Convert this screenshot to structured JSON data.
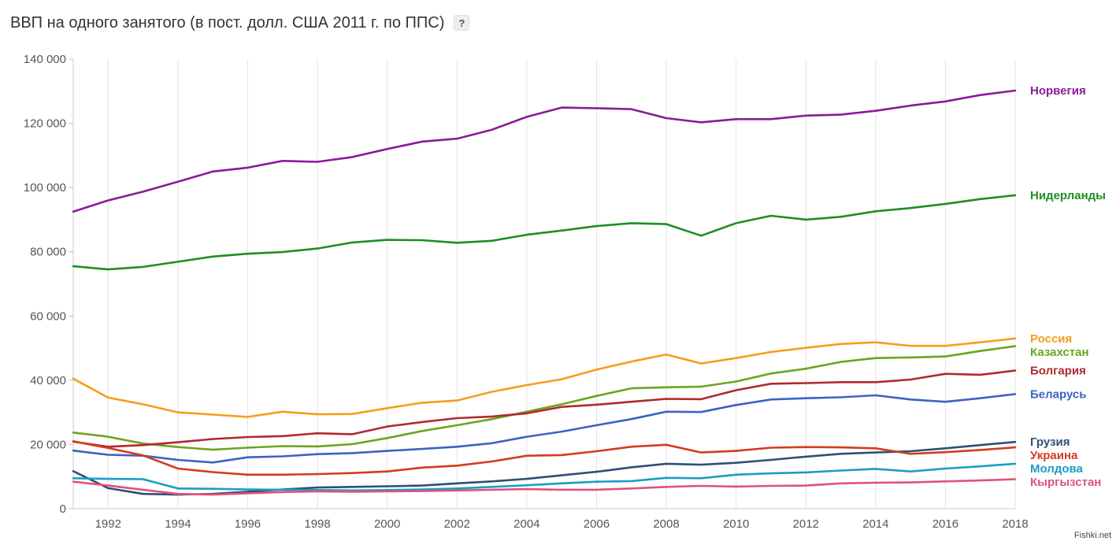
{
  "header": {
    "title": "ВВП на одного занятого (в пост. долл. США 2011 г. по ППС)",
    "help_label": "?"
  },
  "watermark": "Fishki.net",
  "chart_data": {
    "type": "line",
    "title": "ВВП на одного занятого (в пост. долл. США 2011 г. по ППС)",
    "xlabel": "",
    "ylabel": "",
    "x": [
      1991,
      1992,
      1993,
      1994,
      1995,
      1996,
      1997,
      1998,
      1999,
      2000,
      2001,
      2002,
      2003,
      2004,
      2005,
      2006,
      2007,
      2008,
      2009,
      2010,
      2011,
      2012,
      2013,
      2014,
      2015,
      2016,
      2017,
      2018
    ],
    "xlim": [
      1991,
      2018
    ],
    "ylim": [
      0,
      140000
    ],
    "xticks": [
      1992,
      1994,
      1996,
      1998,
      2000,
      2002,
      2004,
      2006,
      2008,
      2010,
      2012,
      2014,
      2016,
      2018
    ],
    "xtick_labels": [
      "1992",
      "1994",
      "1996",
      "1998",
      "2000",
      "2002",
      "2004",
      "2006",
      "2008",
      "2010",
      "2012",
      "2014",
      "2016",
      "2018"
    ],
    "yticks": [
      0,
      20000,
      40000,
      60000,
      80000,
      100000,
      120000,
      140000
    ],
    "ytick_labels": [
      "0",
      "20 000",
      "40 000",
      "60 000",
      "80 000",
      "100 000",
      "120 000",
      "140 000"
    ],
    "grid": "vertical",
    "legend": "right-end labels",
    "series": [
      {
        "name": "Норвегия",
        "color": "#8B1A9A",
        "values": [
          92500,
          96000,
          98700,
          101800,
          105000,
          106200,
          108300,
          108000,
          109500,
          112000,
          114300,
          115200,
          118000,
          122000,
          124900,
          124700,
          124400,
          121600,
          120300,
          121300,
          121300,
          122400,
          122700,
          123900,
          125500,
          126800,
          128800,
          130200
        ]
      },
      {
        "name": "Нидерланды",
        "color": "#1E8E22",
        "values": [
          75500,
          74500,
          75300,
          76900,
          78500,
          79400,
          79900,
          81000,
          82900,
          83700,
          83600,
          82800,
          83400,
          85300,
          86600,
          88000,
          88900,
          88600,
          85000,
          88900,
          91200,
          90000,
          90900,
          92600,
          93600,
          94900,
          96400,
          97600
        ]
      },
      {
        "name": "Россия",
        "color": "#F59E1B",
        "values": [
          40500,
          34600,
          32500,
          30000,
          29300,
          28600,
          30200,
          29400,
          29500,
          31300,
          33000,
          33700,
          36400,
          38500,
          40300,
          43300,
          45800,
          48000,
          45200,
          46900,
          48800,
          50100,
          51300,
          51800,
          50700,
          50700,
          51800,
          53000
        ]
      },
      {
        "name": "Казахстан",
        "color": "#6BA51E",
        "values": [
          23700,
          22400,
          20300,
          19200,
          18400,
          19000,
          19500,
          19400,
          20100,
          22000,
          24200,
          26000,
          27900,
          30200,
          32500,
          35100,
          37500,
          37800,
          38000,
          39600,
          42100,
          43600,
          45700,
          46900,
          47100,
          47400,
          49100,
          50600
        ]
      },
      {
        "name": "Болгария",
        "color": "#B3282F",
        "values": [
          20900,
          19300,
          19800,
          20700,
          21700,
          22300,
          22600,
          23500,
          23200,
          25600,
          27000,
          28200,
          28700,
          29700,
          31700,
          32400,
          33300,
          34200,
          34100,
          36900,
          38900,
          39100,
          39400,
          39400,
          40200,
          42000,
          41700,
          43000
        ]
      },
      {
        "name": "Беларусь",
        "color": "#3B63C4",
        "values": [
          18100,
          16800,
          16500,
          15200,
          14400,
          16000,
          16300,
          17000,
          17300,
          18000,
          18600,
          19300,
          20400,
          22400,
          24000,
          26000,
          27900,
          30200,
          30100,
          32300,
          34000,
          34400,
          34700,
          35300,
          34000,
          33300,
          34400,
          35700
        ]
      },
      {
        "name": "Грузия",
        "color": "#2F4F75",
        "values": [
          11700,
          6400,
          4600,
          4400,
          4600,
          5300,
          6000,
          6600,
          6800,
          7000,
          7200,
          7900,
          8500,
          9300,
          10400,
          11500,
          12900,
          14000,
          13700,
          14300,
          15200,
          16200,
          17100,
          17500,
          17900,
          18800,
          19800,
          20800
        ]
      },
      {
        "name": "Украина",
        "color": "#D23C1E",
        "values": [
          21000,
          18900,
          16600,
          12500,
          11400,
          10600,
          10600,
          10800,
          11100,
          11600,
          12800,
          13400,
          14700,
          16500,
          16700,
          17900,
          19300,
          19900,
          17500,
          18000,
          19000,
          19200,
          19100,
          18800,
          17100,
          17600,
          18300,
          19100
        ]
      },
      {
        "name": "Молдова",
        "color": "#1B9DC2",
        "values": [
          9500,
          9300,
          9200,
          6300,
          6200,
          6000,
          5900,
          5800,
          5700,
          5800,
          6000,
          6300,
          6800,
          7300,
          7900,
          8400,
          8600,
          9600,
          9500,
          10600,
          11000,
          11300,
          11900,
          12400,
          11600,
          12500,
          13200,
          14000
        ]
      },
      {
        "name": "Кыргызстан",
        "color": "#E0527E",
        "values": [
          8400,
          7200,
          5900,
          4600,
          4400,
          4800,
          5200,
          5400,
          5300,
          5400,
          5500,
          5700,
          5900,
          6100,
          5900,
          5900,
          6300,
          6800,
          7100,
          6900,
          7100,
          7200,
          7900,
          8100,
          8200,
          8500,
          8800,
          9200
        ]
      }
    ]
  }
}
